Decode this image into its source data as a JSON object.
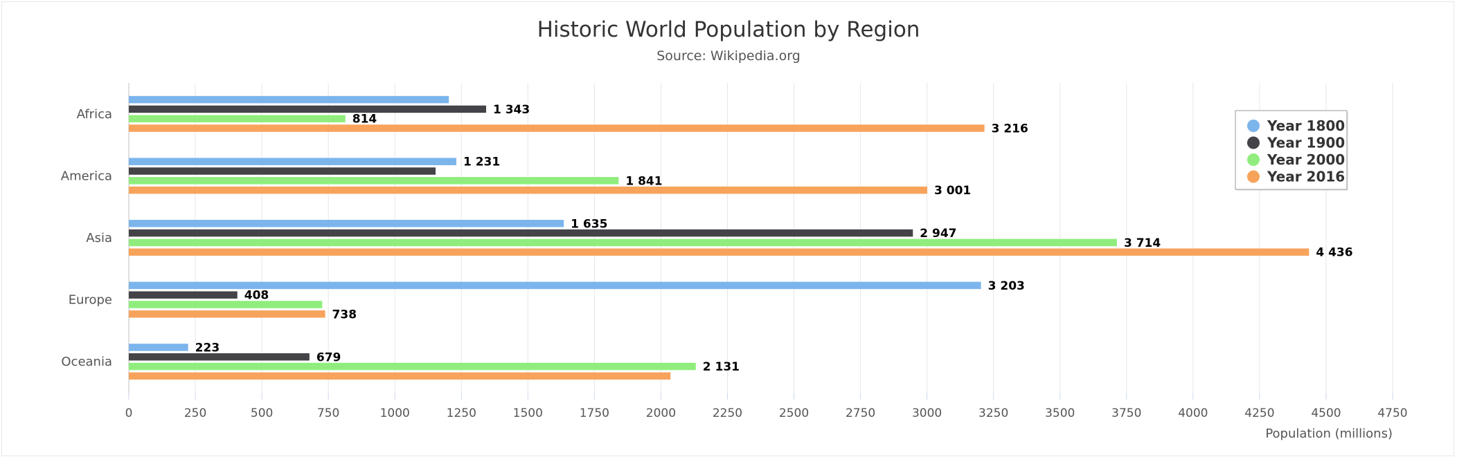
{
  "chart_data": {
    "type": "bar",
    "orientation": "horizontal",
    "title": "Historic World Population by Region",
    "subtitle": "Source: Wikipedia.org",
    "xlabel": "Population (millions)",
    "categories": [
      "Africa",
      "America",
      "Asia",
      "Europe",
      "Oceania"
    ],
    "series": [
      {
        "name": "Year 1800",
        "color": "#7cb5ec",
        "values": [
          1203,
          1231,
          1635,
          3203,
          223
        ],
        "labels": [
          "",
          "1 231",
          "1 635",
          "3 203",
          "223"
        ]
      },
      {
        "name": "Year 1900",
        "color": "#434348",
        "values": [
          1343,
          1153,
          2947,
          408,
          679
        ],
        "labels": [
          "1 343",
          "",
          "2 947",
          "408",
          "679"
        ]
      },
      {
        "name": "Year 2000",
        "color": "#90ed7d",
        "values": [
          814,
          1841,
          3714,
          727,
          2131
        ],
        "labels": [
          "814",
          "1 841",
          "3 714",
          "",
          "2 131"
        ]
      },
      {
        "name": "Year 2016",
        "color": "#f7a35c",
        "values": [
          3216,
          3001,
          4436,
          738,
          2036
        ],
        "labels": [
          "3 216",
          "3 001",
          "4 436",
          "738",
          ""
        ]
      }
    ],
    "xlim": [
      0,
      4750
    ],
    "xticks": [
      0,
      250,
      500,
      750,
      1000,
      1250,
      1500,
      1750,
      2000,
      2250,
      2500,
      2750,
      3000,
      3250,
      3500,
      3750,
      4000,
      4250,
      4500,
      4750
    ],
    "xtick_labels": [
      "0",
      "250",
      "500",
      "750",
      "1000",
      "1250",
      "1500",
      "1750",
      "2000",
      "2250",
      "2500",
      "2750",
      "3000",
      "3250",
      "3500",
      "3750",
      "4000",
      "4250",
      "4500",
      "4750"
    ],
    "grid": true,
    "legend": "top-right"
  }
}
